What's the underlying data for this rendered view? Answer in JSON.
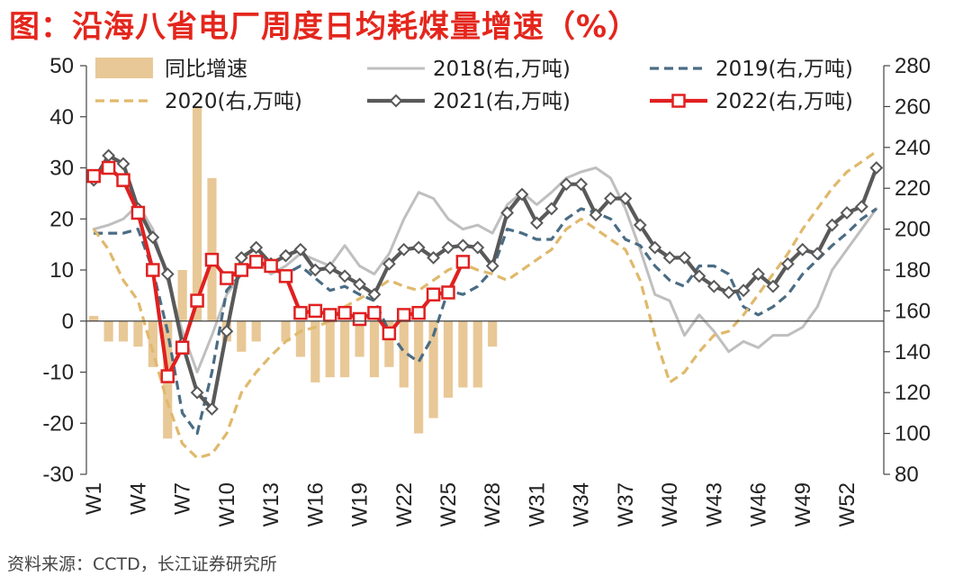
{
  "title": "图：沿海八省电厂周度日均耗煤量增速（%）",
  "source": "资料来源：CCTD，长江证券研究所",
  "chart_data": {
    "type": "bar+line",
    "title": "图：沿海八省电厂周度日均耗煤量增速（%）",
    "x_ticks": [
      "W1",
      "W4",
      "W7",
      "W10",
      "W13",
      "W16",
      "W19",
      "W22",
      "W25",
      "W28",
      "W31",
      "W34",
      "W37",
      "W40",
      "W43",
      "W46",
      "W49",
      "W52"
    ],
    "left_axis": {
      "ylim": [
        -30,
        50
      ],
      "ticks": [
        "50",
        "40",
        "30",
        "20",
        "10",
        "0",
        "-10",
        "-20",
        "-30"
      ]
    },
    "right_axis": {
      "ylim": [
        80,
        280
      ],
      "ticks": [
        "280",
        "260",
        "240",
        "220",
        "200",
        "180",
        "160",
        "140",
        "120",
        "100",
        "80"
      ]
    },
    "legend_placement": "top",
    "colors": {
      "bar": "#e8c896",
      "s2018": "#bfbfbf",
      "s2019": "#4a6c84",
      "s2020": "#e0b96c",
      "s2021": "#595959",
      "s2022": "#e02020"
    },
    "bar_series": {
      "name": "同比增速",
      "axis": "left",
      "values": [
        1,
        -4,
        -4,
        -5,
        -9,
        -23,
        10,
        42,
        28,
        -4,
        -6,
        -4,
        0,
        -4,
        -7,
        -12,
        -11,
        -11,
        -7,
        -11,
        -9,
        -13,
        -22,
        -19,
        -15,
        -13,
        -13,
        -5
      ]
    },
    "line_series": [
      {
        "name": "2018(右,万吨)",
        "axis": "right",
        "style": "solid",
        "color_key": "s2018",
        "values": [
          200,
          202,
          205,
          212,
          200,
          175,
          150,
          130,
          148,
          168,
          178,
          185,
          178,
          182,
          188,
          185,
          182,
          192,
          182,
          178,
          188,
          205,
          218,
          215,
          205,
          200,
          202,
          198,
          212,
          218,
          212,
          218,
          225,
          228,
          230,
          225,
          210,
          190,
          168,
          165,
          148,
          158,
          150,
          140,
          145,
          142,
          148,
          148,
          152,
          162,
          180,
          190,
          200,
          210
        ]
      },
      {
        "name": "2019(右,万吨)",
        "axis": "right",
        "style": "dash",
        "color_key": "s2019",
        "values": [
          198,
          198,
          198,
          200,
          180,
          150,
          110,
          100,
          130,
          170,
          178,
          185,
          180,
          178,
          182,
          176,
          170,
          172,
          168,
          165,
          150,
          140,
          135,
          148,
          170,
          168,
          172,
          180,
          200,
          198,
          195,
          195,
          205,
          210,
          208,
          205,
          195,
          192,
          182,
          175,
          172,
          182,
          182,
          178,
          162,
          158,
          162,
          168,
          178,
          185,
          192,
          198,
          205,
          210
        ]
      },
      {
        "name": "2020(右,万吨)",
        "axis": "right",
        "style": "dash",
        "color_key": "s2020",
        "values": [
          200,
          190,
          175,
          165,
          140,
          115,
          95,
          88,
          90,
          100,
          120,
          130,
          138,
          145,
          150,
          152,
          155,
          162,
          166,
          170,
          175,
          172,
          170,
          175,
          180,
          183,
          180,
          178,
          175,
          180,
          185,
          190,
          200,
          205,
          200,
          195,
          190,
          175,
          148,
          125,
          130,
          140,
          148,
          150,
          158,
          168,
          178,
          188,
          200,
          210,
          220,
          228,
          233,
          238
        ]
      },
      {
        "name": "2021(右,万吨)",
        "axis": "right",
        "style": "solid-marker",
        "color_key": "s2021",
        "values": [
          224,
          236,
          232,
          210,
          196,
          178,
          144,
          120,
          112,
          150,
          186,
          191,
          183,
          187,
          190,
          180,
          181,
          177,
          173,
          168,
          183,
          190,
          191,
          186,
          191,
          192,
          191,
          182,
          208,
          217,
          203,
          210,
          222,
          222,
          207,
          215,
          215,
          202,
          191,
          186,
          186,
          177,
          172,
          169,
          170,
          178,
          172,
          183,
          190,
          188,
          202,
          208,
          211,
          230
        ]
      },
      {
        "name": "2022(右,万吨)",
        "axis": "right",
        "style": "solid-marker",
        "color_key": "s2022",
        "values": [
          226,
          230,
          224,
          208,
          180,
          128,
          142,
          165,
          185,
          176,
          180,
          184,
          182,
          177,
          159,
          160,
          158,
          159,
          156,
          159,
          149,
          158,
          159,
          168,
          169,
          184
        ]
      }
    ]
  }
}
